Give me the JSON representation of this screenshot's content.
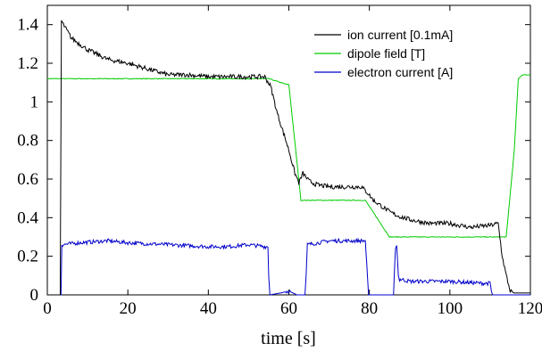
{
  "chart_data": {
    "type": "line",
    "title": "",
    "xlabel": "time [s]",
    "ylabel": "",
    "xlim": [
      0,
      120
    ],
    "ylim": [
      0,
      1.5
    ],
    "xticks": [
      0,
      20,
      40,
      60,
      80,
      100,
      120
    ],
    "yticks": [
      0,
      0.2,
      0.4,
      0.6,
      0.8,
      1,
      1.2,
      1.4
    ],
    "xtick_labels": [
      "0",
      "20",
      "40",
      "60",
      "80",
      "100",
      "120"
    ],
    "ytick_labels": [
      "0",
      "0.2",
      "0.4",
      "0.6",
      "0.8",
      "1",
      "1.2",
      "1.4"
    ],
    "grid": false,
    "legend_position": "top-right",
    "series": [
      {
        "name": "ion current [0.1mA]",
        "color": "#000000",
        "noise": 0.012,
        "x": [
          0,
          3.2,
          3.5,
          4,
          6,
          10,
          15,
          20,
          25,
          30,
          35,
          40,
          45,
          50,
          54,
          55.5,
          57,
          58.5,
          60,
          61.5,
          62.5,
          63.5,
          65,
          67,
          70,
          73,
          76,
          78,
          79.5,
          81,
          83,
          85,
          87,
          90,
          95,
          100,
          105,
          110,
          112,
          113,
          114,
          115,
          116,
          117,
          118,
          119,
          120
        ],
        "y": [
          0,
          0,
          1.42,
          1.4,
          1.33,
          1.27,
          1.22,
          1.2,
          1.17,
          1.14,
          1.14,
          1.13,
          1.13,
          1.13,
          1.13,
          1.08,
          0.95,
          0.85,
          0.75,
          0.63,
          0.58,
          0.63,
          0.59,
          0.57,
          0.56,
          0.56,
          0.56,
          0.56,
          0.53,
          0.49,
          0.46,
          0.43,
          0.41,
          0.39,
          0.37,
          0.37,
          0.35,
          0.36,
          0.37,
          0.2,
          0.1,
          0.02,
          0.01,
          0.01,
          0.01,
          0.01,
          0.01
        ]
      },
      {
        "name": "dipole field [T]",
        "color": "#00cc00",
        "noise": 0.002,
        "x": [
          0,
          20,
          40,
          50,
          55,
          58,
          59.5,
          60,
          63,
          64,
          70,
          75,
          78,
          79,
          85,
          86,
          90,
          100,
          110,
          112,
          114,
          116,
          117,
          118,
          120
        ],
        "y": [
          1.12,
          1.12,
          1.12,
          1.12,
          1.12,
          1.1,
          1.09,
          1.09,
          0.49,
          0.49,
          0.49,
          0.49,
          0.49,
          0.49,
          0.3,
          0.3,
          0.3,
          0.3,
          0.3,
          0.3,
          0.3,
          0.75,
          1.12,
          1.14,
          1.14
        ]
      },
      {
        "name": "electron current [A]",
        "color": "#0000cc",
        "noise": 0.01,
        "x": [
          0,
          3.4,
          3.6,
          8,
          15,
          20,
          30,
          40,
          45,
          50,
          54,
          54.8,
          55,
          55.3,
          58,
          60,
          62,
          64,
          64.3,
          64.6,
          70,
          75,
          79,
          79.5,
          79.8,
          86,
          86.5,
          86.8,
          87.2,
          87.5,
          88,
          90,
          100,
          108,
          110,
          110.3,
          110.6,
          115,
          120
        ],
        "y": [
          0,
          0,
          0.26,
          0.27,
          0.28,
          0.27,
          0.26,
          0.25,
          0.25,
          0.26,
          0.25,
          0.25,
          0.1,
          0,
          0.01,
          0.02,
          0,
          0,
          0.1,
          0.26,
          0.28,
          0.28,
          0.28,
          0.1,
          0,
          0,
          0.25,
          0.26,
          0.1,
          0.08,
          0.08,
          0.07,
          0.07,
          0.06,
          0.06,
          0.02,
          0,
          0,
          0
        ]
      }
    ]
  }
}
